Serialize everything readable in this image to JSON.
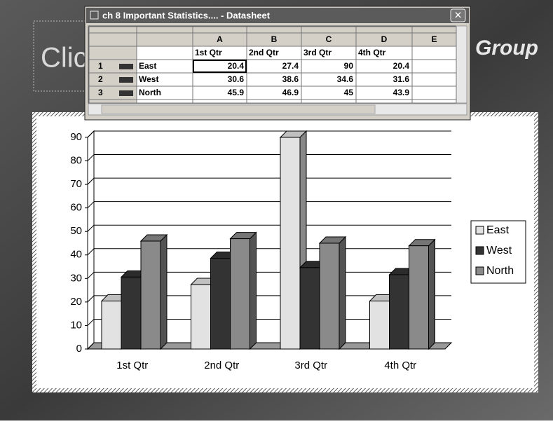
{
  "window": {
    "title": "ch 8 Important Statistics.... - Datasheet",
    "close": "×"
  },
  "slide": {
    "title_fragment": "Clic",
    "logo_fragment": "Group"
  },
  "datasheet": {
    "columns": [
      "A",
      "B",
      "C",
      "D",
      "E"
    ],
    "header_row": [
      "1st Qtr",
      "2nd Qtr",
      "3rd Qtr",
      "4th Qtr"
    ],
    "rows": [
      {
        "number": "1",
        "label": "East",
        "values": [
          20.4,
          27.4,
          90,
          20.4
        ]
      },
      {
        "number": "2",
        "label": "West",
        "values": [
          30.6,
          38.6,
          34.6,
          31.6
        ]
      },
      {
        "number": "3",
        "label": "North",
        "values": [
          45.9,
          46.9,
          45,
          43.9
        ]
      }
    ]
  },
  "chart_data": {
    "type": "bar3d",
    "categories": [
      "1st Qtr",
      "2nd Qtr",
      "3rd Qtr",
      "4th Qtr"
    ],
    "series": [
      {
        "name": "East",
        "color": "#e2e2e2",
        "values": [
          20.4,
          27.4,
          90,
          20.4
        ]
      },
      {
        "name": "West",
        "color": "#333333",
        "values": [
          30.6,
          38.6,
          34.6,
          31.6
        ]
      },
      {
        "name": "North",
        "color": "#8a8a8a",
        "values": [
          45.9,
          46.9,
          45,
          43.9
        ]
      }
    ],
    "ylim": [
      0,
      90
    ],
    "yticks": [
      0,
      10,
      20,
      30,
      40,
      50,
      60,
      70,
      80,
      90
    ],
    "grid": true,
    "legend": "right"
  }
}
